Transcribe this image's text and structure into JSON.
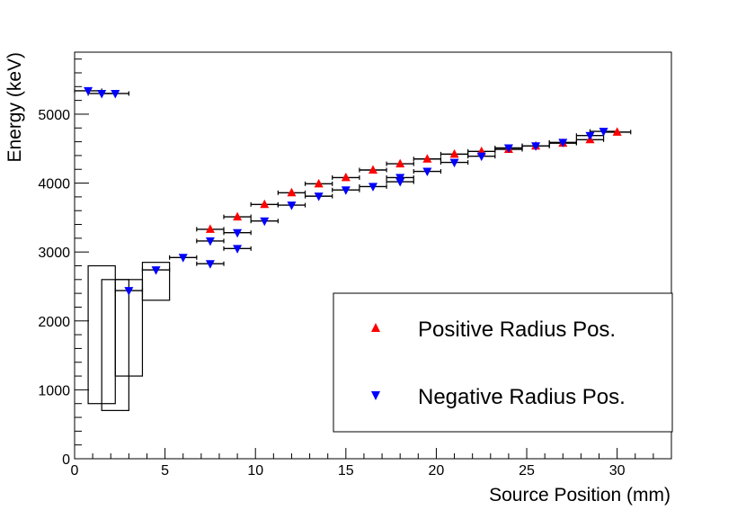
{
  "chart_data": {
    "type": "scatter",
    "title": "",
    "xlabel": "Source Position (mm)",
    "ylabel": "Energy (keV)",
    "xlim": [
      0,
      33
    ],
    "ylim": [
      0,
      5900
    ],
    "x_ticks": [
      0,
      5,
      10,
      15,
      20,
      25,
      30
    ],
    "y_ticks": [
      0,
      1000,
      2000,
      3000,
      4000,
      5000
    ],
    "x_tick_labels": [
      "0",
      "5",
      "10",
      "15",
      "20",
      "25",
      "30"
    ],
    "y_tick_labels": [
      "0",
      "1000",
      "2000",
      "3000",
      "4000",
      "5000"
    ],
    "legend_position": "bottom-right",
    "series": [
      {
        "name": "Positive Radius Pos.",
        "marker": "triangle-up",
        "color": "#ff0000",
        "points": [
          {
            "x": 7.5,
            "y": 3330,
            "xerr": 0.75
          },
          {
            "x": 9.0,
            "y": 3510,
            "xerr": 0.75
          },
          {
            "x": 10.5,
            "y": 3690,
            "xerr": 0.75
          },
          {
            "x": 12.0,
            "y": 3860,
            "xerr": 0.75
          },
          {
            "x": 13.5,
            "y": 3990,
            "xerr": 0.75
          },
          {
            "x": 15.0,
            "y": 4080,
            "xerr": 0.75
          },
          {
            "x": 16.5,
            "y": 4190,
            "xerr": 0.75
          },
          {
            "x": 18.0,
            "y": 4280,
            "xerr": 0.75
          },
          {
            "x": 19.5,
            "y": 4350,
            "xerr": 0.75
          },
          {
            "x": 21.0,
            "y": 4420,
            "xerr": 0.75
          },
          {
            "x": 22.5,
            "y": 4460,
            "xerr": 0.75
          },
          {
            "x": 24.0,
            "y": 4490,
            "xerr": 0.75
          },
          {
            "x": 25.5,
            "y": 4540,
            "xerr": 0.75
          },
          {
            "x": 27.0,
            "y": 4580,
            "xerr": 0.75
          },
          {
            "x": 28.5,
            "y": 4630,
            "xerr": 0.75
          },
          {
            "x": 30.0,
            "y": 4740,
            "xerr": 0.75
          }
        ]
      },
      {
        "name": "Negative Radius Pos.",
        "marker": "triangle-down",
        "color": "#0000ff",
        "points": [
          {
            "x": 0.75,
            "y": 5340,
            "xerr": 0.75
          },
          {
            "x": 1.5,
            "y": 5300,
            "xerr": 0.75
          },
          {
            "x": 2.25,
            "y": 5300,
            "xerr": 0.75
          },
          {
            "x": 3.0,
            "y": 2440,
            "xerr": 0.75
          },
          {
            "x": 4.5,
            "y": 2740,
            "xerr": 0.75
          },
          {
            "x": 6.0,
            "y": 2920,
            "xerr": 0.75
          },
          {
            "x": 7.5,
            "y": 2830,
            "xerr": 0.75
          },
          {
            "x": 7.5,
            "y": 3160,
            "xerr": 0.75
          },
          {
            "x": 9.0,
            "y": 3050,
            "xerr": 0.75
          },
          {
            "x": 9.0,
            "y": 3280,
            "xerr": 0.75
          },
          {
            "x": 10.5,
            "y": 3450,
            "xerr": 0.75
          },
          {
            "x": 12.0,
            "y": 3680,
            "xerr": 0.75
          },
          {
            "x": 13.5,
            "y": 3810,
            "xerr": 0.75
          },
          {
            "x": 15.0,
            "y": 3900,
            "xerr": 0.75
          },
          {
            "x": 16.5,
            "y": 3950,
            "xerr": 0.75
          },
          {
            "x": 18.0,
            "y": 4020,
            "xerr": 0.75
          },
          {
            "x": 18.0,
            "y": 4080,
            "xerr": 0.75
          },
          {
            "x": 19.5,
            "y": 4170,
            "xerr": 0.75
          },
          {
            "x": 21.0,
            "y": 4300,
            "xerr": 0.75
          },
          {
            "x": 22.5,
            "y": 4390,
            "xerr": 0.75
          },
          {
            "x": 24.0,
            "y": 4510,
            "xerr": 0.75
          },
          {
            "x": 25.5,
            "y": 4540,
            "xerr": 0.75
          },
          {
            "x": 27.0,
            "y": 4590,
            "xerr": 0.75
          },
          {
            "x": 28.5,
            "y": 4690,
            "xerr": 0.75
          },
          {
            "x": 29.25,
            "y": 4750,
            "xerr": 0.75
          }
        ]
      }
    ],
    "boxes": [
      {
        "x0": 0.75,
        "x1": 2.25,
        "y0": 800,
        "y1": 2800
      },
      {
        "x0": 1.5,
        "x1": 3.0,
        "y0": 700,
        "y1": 2600
      },
      {
        "x0": 2.25,
        "x1": 3.75,
        "y0": 1200,
        "y1": 2600
      },
      {
        "x0": 3.75,
        "x1": 5.25,
        "y0": 2300,
        "y1": 2850
      }
    ]
  }
}
